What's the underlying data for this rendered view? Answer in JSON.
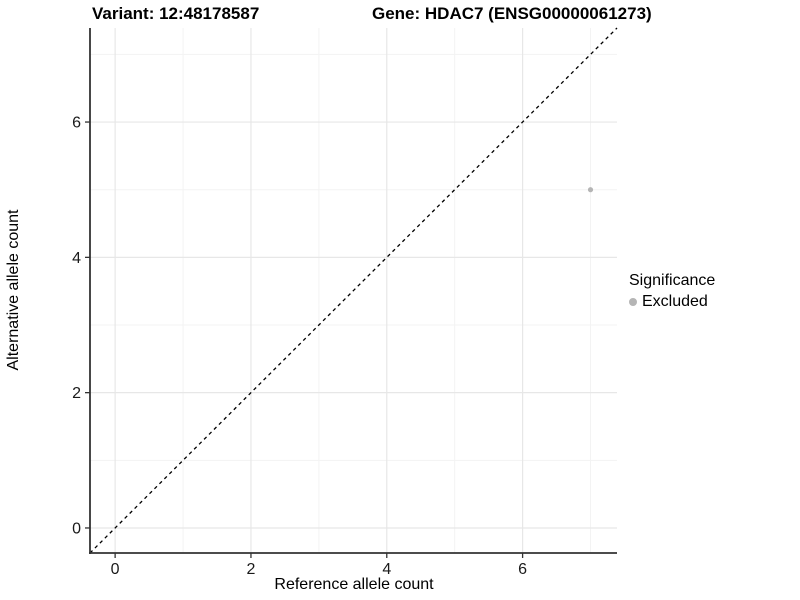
{
  "titles": {
    "left": "Variant: 12:48178587",
    "right": "Gene: HDAC7 (ENSG00000061273)"
  },
  "axes": {
    "x_label": "Reference allele count",
    "y_label": "Alternative allele count"
  },
  "legend": {
    "title": "Significance",
    "items": [
      {
        "label": "Excluded",
        "color": "#b5b5b5"
      }
    ]
  },
  "colors": {
    "background": "#ffffff",
    "axis_line": "#333333",
    "tick_text": "#1a1a1a",
    "grid_major": "#e7e7e7",
    "grid_minor": "#f3f3f3",
    "reference_line": "#000000",
    "point": "#b5b5b5"
  },
  "chart_data": {
    "type": "scatter",
    "title": "Variant: 12:48178587 | Gene: HDAC7 (ENSG00000061273)",
    "xlabel": "Reference allele count",
    "ylabel": "Alternative allele count",
    "xlim": [
      -0.37,
      7.39
    ],
    "ylim": [
      -0.37,
      7.39
    ],
    "x_ticks": [
      0,
      2,
      4,
      6
    ],
    "y_ticks": [
      0,
      2,
      4,
      6
    ],
    "x_minor": [
      1,
      3,
      5,
      7
    ],
    "y_minor": [
      1,
      3,
      5,
      7
    ],
    "grid": true,
    "legend_position": "right",
    "series": [
      {
        "name": "Excluded",
        "color": "#b5b5b5",
        "points": [
          {
            "x": 7,
            "y": 5
          }
        ]
      }
    ],
    "reference_line": {
      "kind": "identity y=x",
      "style": "dashed",
      "color": "#000000"
    }
  }
}
